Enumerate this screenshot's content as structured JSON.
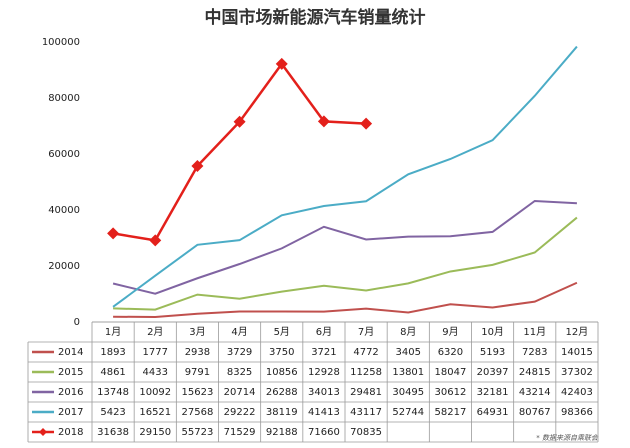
{
  "chart_data": {
    "type": "line",
    "title": "中国市场新能源汽车销量统计",
    "source": "* 数据来源自乘联会",
    "categories": [
      "1月",
      "2月",
      "3月",
      "4月",
      "5月",
      "6月",
      "7月",
      "8月",
      "9月",
      "10月",
      "11月",
      "12月"
    ],
    "series": [
      {
        "name": "2014",
        "color": "#c0504d",
        "values": [
          1893,
          1777,
          2938,
          3729,
          3750,
          3721,
          4772,
          3405,
          6320,
          5193,
          7283,
          14015
        ]
      },
      {
        "name": "2015",
        "color": "#9bbb59",
        "values": [
          4861,
          4433,
          9791,
          8325,
          10856,
          12928,
          11258,
          13801,
          18047,
          20397,
          24815,
          37302
        ]
      },
      {
        "name": "2016",
        "color": "#8064a2",
        "values": [
          13748,
          10092,
          15623,
          20714,
          26288,
          34013,
          29481,
          30495,
          30612,
          32181,
          43214,
          42403
        ]
      },
      {
        "name": "2017",
        "color": "#4bacc6",
        "values": [
          5423,
          16521,
          27568,
          29222,
          38119,
          41413,
          43117,
          52744,
          58217,
          64931,
          80767,
          98366
        ]
      },
      {
        "name": "2018",
        "color": "#e3201b",
        "marker": "diamond",
        "values": [
          31638,
          29150,
          55723,
          71529,
          92188,
          71660,
          70835,
          null,
          null,
          null,
          null,
          null
        ]
      }
    ],
    "ylim": [
      0,
      100000
    ],
    "yticks": [
      0,
      20000,
      40000,
      60000,
      80000,
      100000
    ],
    "grid": false
  }
}
